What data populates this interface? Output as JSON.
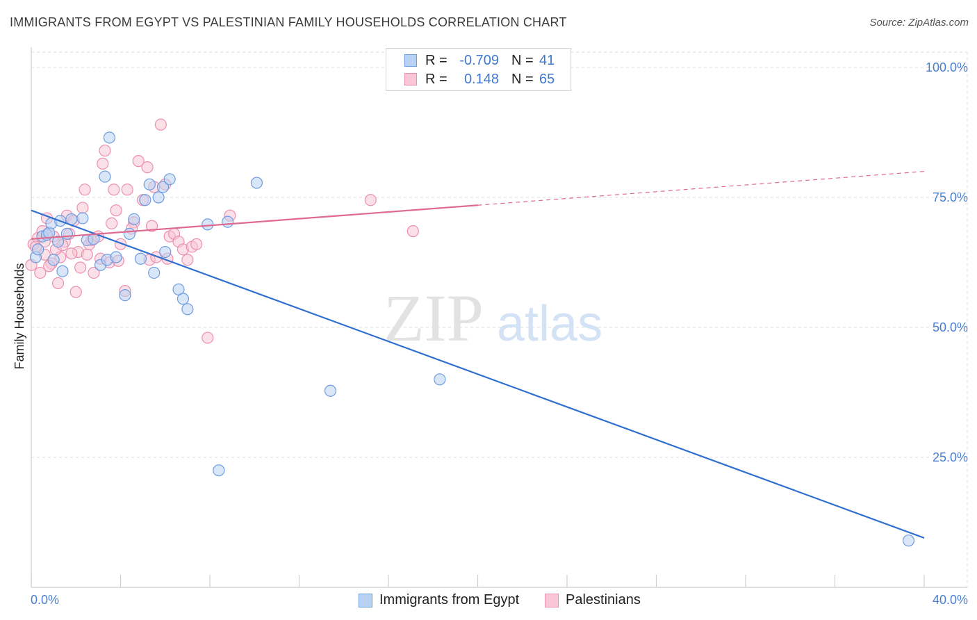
{
  "title": "IMMIGRANTS FROM EGYPT VS PALESTINIAN FAMILY HOUSEHOLDS CORRELATION CHART",
  "source": "Source: ZipAtlas.com",
  "watermark": {
    "zip": "ZIP",
    "atlas": "atlas"
  },
  "colors": {
    "egypt_fill": "#b9d1f2",
    "egypt_stroke": "#6d9ce0",
    "egypt_line": "#2f6fd0",
    "pal_fill": "#f8c6d6",
    "pal_stroke": "#ec8fae",
    "pal_line": "#e0698f",
    "grid": "#dcdcdc",
    "tick_text": "#4a7fd0"
  },
  "legend": {
    "rows": [
      {
        "series": "egypt",
        "r_label": "R =",
        "r_value": "-0.709",
        "n_label": "N =",
        "n_value": "41"
      },
      {
        "series": "pal",
        "r_label": "R =",
        "r_value": "0.148",
        "n_label": "N =",
        "n_value": "65"
      }
    ]
  },
  "bottom_legend": {
    "egypt": "Immigrants from Egypt",
    "pal": "Palestinians"
  },
  "chart_data": {
    "type": "scatter",
    "title": "IMMIGRANTS FROM EGYPT VS PALESTINIAN FAMILY HOUSEHOLDS CORRELATION CHART",
    "xlabel": "",
    "ylabel": "Family Households",
    "xlim": [
      0,
      40
    ],
    "ylim": [
      0,
      100
    ],
    "x_tick_labels": [
      "0.0%",
      "40.0%"
    ],
    "y_ticks": [
      {
        "value": 25,
        "label": "25.0%"
      },
      {
        "value": 50,
        "label": "50.0%"
      },
      {
        "value": 75,
        "label": "75.0%"
      },
      {
        "value": 100,
        "label": "100.0%"
      }
    ],
    "series": [
      {
        "name": "Immigrants from Egypt",
        "key": "egypt",
        "trend": {
          "x0": 0.0,
          "y0": 72.5,
          "x1": 40.0,
          "y1": 9.5,
          "dashed_to": null
        },
        "points": [
          [
            0.2,
            63.5
          ],
          [
            0.3,
            65.0
          ],
          [
            0.5,
            67.5
          ],
          [
            0.7,
            67.8
          ],
          [
            0.8,
            68.2
          ],
          [
            0.9,
            70.0
          ],
          [
            1.0,
            63.0
          ],
          [
            1.2,
            66.5
          ],
          [
            1.3,
            70.5
          ],
          [
            1.4,
            60.8
          ],
          [
            1.6,
            68.0
          ],
          [
            1.8,
            70.8
          ],
          [
            2.3,
            71.0
          ],
          [
            2.5,
            66.8
          ],
          [
            2.8,
            67.0
          ],
          [
            3.1,
            62.0
          ],
          [
            3.3,
            79.0
          ],
          [
            3.4,
            63.0
          ],
          [
            3.5,
            86.5
          ],
          [
            3.8,
            63.5
          ],
          [
            4.2,
            56.2
          ],
          [
            4.4,
            68.0
          ],
          [
            4.6,
            70.8
          ],
          [
            4.9,
            63.2
          ],
          [
            5.1,
            74.5
          ],
          [
            5.3,
            77.5
          ],
          [
            5.5,
            60.5
          ],
          [
            5.7,
            75.0
          ],
          [
            5.9,
            77.0
          ],
          [
            6.0,
            64.5
          ],
          [
            6.2,
            78.5
          ],
          [
            6.6,
            57.3
          ],
          [
            6.8,
            55.5
          ],
          [
            7.0,
            53.5
          ],
          [
            7.9,
            69.8
          ],
          [
            8.4,
            22.5
          ],
          [
            8.8,
            70.3
          ],
          [
            10.1,
            77.8
          ],
          [
            13.4,
            37.8
          ],
          [
            18.3,
            40.0
          ],
          [
            39.3,
            9.0
          ]
        ]
      },
      {
        "name": "Palestinians",
        "key": "pal",
        "trend": {
          "x0": 0.0,
          "y0": 67.0,
          "x1": 20.0,
          "y1": 73.5,
          "dashed_to": {
            "x": 40.0,
            "y": 80.0
          }
        },
        "points": [
          [
            0.0,
            62.0
          ],
          [
            0.1,
            66.0
          ],
          [
            0.3,
            67.2
          ],
          [
            0.5,
            68.5
          ],
          [
            0.6,
            64.0
          ],
          [
            0.7,
            71.0
          ],
          [
            0.9,
            62.3
          ],
          [
            1.0,
            67.5
          ],
          [
            1.2,
            58.5
          ],
          [
            1.3,
            63.5
          ],
          [
            1.5,
            66.5
          ],
          [
            1.6,
            71.5
          ],
          [
            1.7,
            68.0
          ],
          [
            1.9,
            70.5
          ],
          [
            2.0,
            56.8
          ],
          [
            2.1,
            64.5
          ],
          [
            2.3,
            73.0
          ],
          [
            2.4,
            76.5
          ],
          [
            2.5,
            64.0
          ],
          [
            2.6,
            66.0
          ],
          [
            2.8,
            60.5
          ],
          [
            3.0,
            67.5
          ],
          [
            3.2,
            81.5
          ],
          [
            3.3,
            84.0
          ],
          [
            3.5,
            62.5
          ],
          [
            3.6,
            70.0
          ],
          [
            3.7,
            76.5
          ],
          [
            3.8,
            72.5
          ],
          [
            4.0,
            66.0
          ],
          [
            4.2,
            57.0
          ],
          [
            4.3,
            76.5
          ],
          [
            4.6,
            70.2
          ],
          [
            4.8,
            82.0
          ],
          [
            5.0,
            74.5
          ],
          [
            5.2,
            80.8
          ],
          [
            5.3,
            63.0
          ],
          [
            5.5,
            77.0
          ],
          [
            5.6,
            63.5
          ],
          [
            5.8,
            89.0
          ],
          [
            6.0,
            77.5
          ],
          [
            6.2,
            67.5
          ],
          [
            6.4,
            68.0
          ],
          [
            6.6,
            66.5
          ],
          [
            6.8,
            65.0
          ],
          [
            7.0,
            63.0
          ],
          [
            7.2,
            65.5
          ],
          [
            7.4,
            66.0
          ],
          [
            7.9,
            48.0
          ],
          [
            8.9,
            71.5
          ],
          [
            15.2,
            74.5
          ],
          [
            17.1,
            68.5
          ],
          [
            0.4,
            60.5
          ],
          [
            1.1,
            65.0
          ],
          [
            2.2,
            61.5
          ],
          [
            3.9,
            62.8
          ],
          [
            4.5,
            69.0
          ],
          [
            0.2,
            65.5
          ],
          [
            0.6,
            66.5
          ],
          [
            1.8,
            64.2
          ],
          [
            2.7,
            66.8
          ],
          [
            3.1,
            63.2
          ],
          [
            5.4,
            69.5
          ],
          [
            6.1,
            63.2
          ],
          [
            0.8,
            61.8
          ],
          [
            1.4,
            65.8
          ]
        ]
      }
    ]
  }
}
